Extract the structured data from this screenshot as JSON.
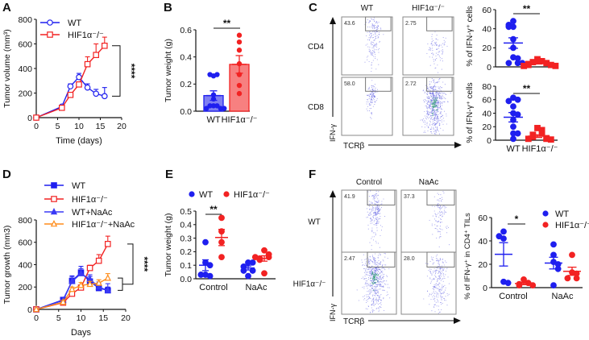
{
  "figure": {
    "panel_labels": [
      "A",
      "B",
      "C",
      "D",
      "E",
      "F"
    ]
  },
  "chart_data": [
    {
      "panel": "A",
      "type": "line",
      "xlabel": "Time (days)",
      "ylabel": "Tumor volume (mm³)",
      "xlim": [
        0,
        20
      ],
      "ylim": [
        0,
        800
      ],
      "xticks": [
        "0",
        "5",
        "10",
        "15",
        "20"
      ],
      "yticks": [
        "0",
        "200",
        "400",
        "600",
        "800"
      ],
      "legend_position": "top-left",
      "series": [
        {
          "name": "WT",
          "color": "#1f1fef",
          "marker": "circle",
          "filled": false,
          "x": [
            0,
            6,
            8,
            10,
            12,
            14,
            16
          ],
          "y": [
            0,
            90,
            255,
            330,
            245,
            195,
            175
          ],
          "err": [
            0,
            10,
            20,
            30,
            30,
            35,
            70
          ]
        },
        {
          "name": "HIF1α⁻/⁻",
          "color": "#f22222",
          "marker": "square",
          "filled": false,
          "x": [
            0,
            6,
            8,
            10,
            12,
            14,
            16
          ],
          "y": [
            0,
            80,
            185,
            270,
            435,
            510,
            585
          ],
          "err": [
            0,
            10,
            20,
            20,
            60,
            90,
            70
          ]
        }
      ],
      "significance": "****"
    },
    {
      "panel": "B",
      "type": "bar",
      "ylabel": "Tumor weight (g)",
      "ylim": [
        0,
        0.6
      ],
      "yticks": [
        "0.0",
        "0.2",
        "0.4",
        "0.6"
      ],
      "categories": [
        "WT",
        "HIF1α⁻/⁻"
      ],
      "groups": [
        {
          "name": "WT",
          "color": "#1f1fef",
          "fill": "#7f7ff2",
          "mean": 0.115,
          "sem": 0.035,
          "points": [
            0.26,
            0.27,
            0.27,
            0.12,
            0.09,
            0.04,
            0.04,
            0.04,
            0.02,
            0.02,
            0.02
          ]
        },
        {
          "name": "HIF1α⁻/⁻",
          "color": "#f22222",
          "fill": "#f78080",
          "mean": 0.345,
          "sem": 0.065,
          "points": [
            0.56,
            0.51,
            0.45,
            0.35,
            0.27,
            0.19,
            0.13
          ]
        }
      ],
      "significance": "**"
    },
    {
      "panel": "C",
      "type": "flow",
      "columns": [
        "WT",
        "HIF1α⁻/⁻"
      ],
      "rows": [
        "CD4",
        "CD8"
      ],
      "gates": [
        [
          "43.6",
          "2.75"
        ],
        [
          "58.0",
          "2.72"
        ]
      ],
      "yaxis": "IFN-γ",
      "xaxis": "TCRβ"
    },
    {
      "panel": "C",
      "type": "scatter",
      "ylabel": "% of IFN-γ⁺ cells",
      "ylim": [
        0,
        60
      ],
      "yticks": [
        "0",
        "20",
        "40",
        "60"
      ],
      "groups": [
        {
          "name": "WT",
          "color": "#1f1fef",
          "marker": "circle",
          "mean": 25,
          "sem": 5.5,
          "points": [
            48,
            42,
            44,
            42,
            29,
            20,
            10,
            9,
            4,
            4,
            4
          ]
        },
        {
          "name": "HIF1α⁻/⁻",
          "color": "#f22222",
          "marker": "square",
          "mean": 4,
          "sem": 1,
          "points": [
            8,
            6,
            5,
            4,
            3,
            2,
            2,
            1,
            1
          ]
        }
      ],
      "significance": "**"
    },
    {
      "panel": "C",
      "type": "scatter",
      "ylabel": "% of IFN-γ⁺ cells",
      "ylim": [
        0,
        80
      ],
      "yticks": [
        "0",
        "20",
        "40",
        "60",
        "80"
      ],
      "categories": [
        "WT",
        "HIF1α⁻/⁻"
      ],
      "groups": [
        {
          "name": "WT",
          "color": "#1f1fef",
          "marker": "circle",
          "mean": 34,
          "sem": 7,
          "points": [
            63,
            60,
            58,
            50,
            40,
            38,
            30,
            20,
            10,
            10,
            2
          ]
        },
        {
          "name": "HIF1α⁻/⁻",
          "color": "#f22222",
          "marker": "square",
          "mean": 6,
          "sem": 2,
          "points": [
            18,
            15,
            10,
            8,
            5,
            3,
            2,
            2,
            1
          ]
        }
      ],
      "significance": "**"
    },
    {
      "panel": "D",
      "type": "line",
      "xlabel": "Days",
      "ylabel": "Tumor growth (mm3)",
      "xlim": [
        0,
        20
      ],
      "ylim": [
        0,
        800
      ],
      "xticks": [
        "0",
        "5",
        "10",
        "15",
        "20"
      ],
      "yticks": [
        "0",
        "200",
        "400",
        "600",
        "800"
      ],
      "legend_position": "top",
      "series": [
        {
          "name": "WT",
          "color": "#1f1fef",
          "marker": "square",
          "filled": true,
          "x": [
            0,
            6,
            8,
            10,
            12,
            14,
            16
          ],
          "y": [
            0,
            85,
            255,
            330,
            250,
            190,
            170
          ],
          "err": [
            0,
            10,
            45,
            55,
            45,
            40,
            30
          ]
        },
        {
          "name": "HIF1α⁻/⁻",
          "color": "#f22222",
          "marker": "square",
          "filled": false,
          "x": [
            0,
            6,
            8,
            10,
            12,
            14,
            16
          ],
          "y": [
            0,
            60,
            140,
            195,
            370,
            435,
            585
          ],
          "err": [
            0,
            10,
            15,
            20,
            25,
            55,
            70
          ]
        },
        {
          "name": "WT+NaAc",
          "color": "#3a3af5",
          "marker": "triangle",
          "filled": true,
          "x": [
            0,
            6,
            8,
            10,
            12,
            14,
            16
          ],
          "y": [
            0,
            80,
            250,
            320,
            270,
            200,
            170
          ],
          "err": [
            0,
            10,
            40,
            45,
            40,
            45,
            60
          ]
        },
        {
          "name": "HIF1α⁻/⁻+NaAc",
          "color": "#ff8c1a",
          "marker": "triangle",
          "filled": false,
          "x": [
            0,
            6,
            8,
            10,
            12,
            14,
            16
          ],
          "y": [
            0,
            65,
            180,
            215,
            225,
            235,
            280
          ],
          "err": [
            0,
            10,
            20,
            25,
            25,
            30,
            40
          ]
        }
      ],
      "significance": "****"
    },
    {
      "panel": "E",
      "type": "scatter",
      "ylabel": "Tumor weight (g)",
      "ylim": [
        0,
        0.5
      ],
      "yticks": [
        "0.0",
        "0.1",
        "0.2",
        "0.3",
        "0.4",
        "0.5"
      ],
      "categories": [
        "Control",
        "NaAc"
      ],
      "legend": [
        {
          "name": "WT",
          "color": "#1f1fef"
        },
        {
          "name": "HIF1α⁻/⁻",
          "color": "#f22222"
        }
      ],
      "groups": [
        {
          "category": "Control",
          "name": "WT",
          "color": "#1f1fef",
          "mean": 0.1,
          "sem": 0.04,
          "points": [
            0.27,
            0.12,
            0.1,
            0.03,
            0.02,
            0.03
          ]
        },
        {
          "category": "Control",
          "name": "HIF1α⁻/⁻",
          "color": "#f22222",
          "mean": 0.305,
          "sem": 0.06,
          "points": [
            0.45,
            0.35,
            0.27,
            0.16
          ]
        },
        {
          "category": "NaAc",
          "name": "WT",
          "color": "#1f1fef",
          "mean": 0.08,
          "sem": 0.015,
          "points": [
            0.12,
            0.12,
            0.09,
            0.06,
            0.06,
            0.02
          ]
        },
        {
          "category": "NaAc",
          "name": "HIF1α⁻/⁻",
          "color": "#f22222",
          "mean": 0.15,
          "sem": 0.02,
          "points": [
            0.21,
            0.18,
            0.16,
            0.15,
            0.14,
            0.16,
            0.04
          ]
        }
      ],
      "significance": "**"
    },
    {
      "panel": "F",
      "type": "flow",
      "columns": [
        "Control",
        "NaAc"
      ],
      "rows": [
        "WT",
        "HIF1α⁻/⁻"
      ],
      "gates": [
        [
          "41.9",
          "37.3"
        ],
        [
          "2.47",
          "28.0"
        ]
      ],
      "yaxis": "IFN-γ",
      "xaxis": "TCRβ"
    },
    {
      "panel": "F",
      "type": "scatter",
      "ylabel": "% of IFN-γ⁺ in CD4⁺ TILs",
      "ylim": [
        0,
        60
      ],
      "yticks": [
        "0",
        "20",
        "40",
        "60"
      ],
      "categories": [
        "Control",
        "NaAc"
      ],
      "legend": [
        {
          "name": "WT",
          "color": "#1f1fef"
        },
        {
          "name": "HIF1α⁻/⁻",
          "color": "#f22222"
        }
      ],
      "groups": [
        {
          "category": "Control",
          "name": "WT",
          "color": "#1f1fef",
          "mean": 28.5,
          "sem": 10,
          "points": [
            48,
            42,
            44,
            5,
            4
          ]
        },
        {
          "category": "Control",
          "name": "HIF1α⁻/⁻",
          "color": "#f22222",
          "mean": 3.5,
          "sem": 1,
          "points": [
            7,
            4,
            3,
            2,
            2
          ]
        },
        {
          "category": "NaAc",
          "name": "WT",
          "color": "#1f1fef",
          "mean": 21,
          "sem": 5,
          "points": [
            37,
            28,
            22,
            20,
            16,
            2
          ]
        },
        {
          "category": "NaAc",
          "name": "HIF1α⁻/⁻",
          "color": "#f22222",
          "mean": 14,
          "sem": 3.5,
          "points": [
            28,
            13,
            12,
            8,
            8
          ]
        }
      ],
      "significance": "*"
    }
  ]
}
